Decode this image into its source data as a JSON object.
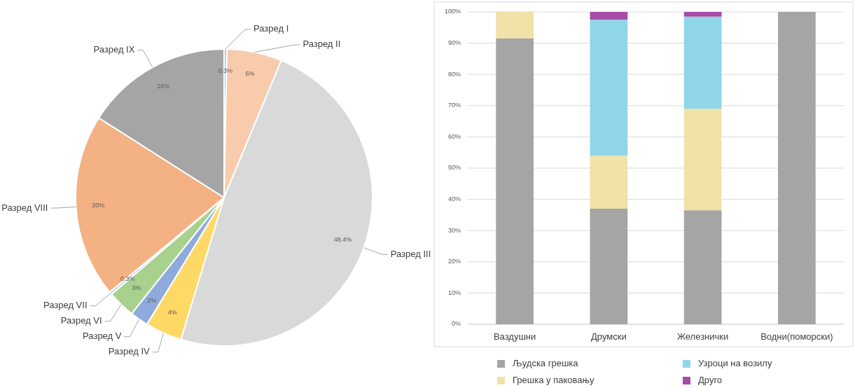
{
  "chart_data": [
    {
      "type": "pie",
      "categories": [
        "Разред I",
        "Разред II",
        "Разред III",
        "Разред IV",
        "Разред V",
        "Разред VI",
        "Разред VII",
        "Разред VIII",
        "Разред IX"
      ],
      "values": [
        0.3,
        6,
        48.4,
        4,
        2,
        3,
        0.3,
        20,
        16
      ],
      "value_labels": [
        "0.3%",
        "6%",
        "48.4%",
        "4%",
        "2%",
        "3%",
        "0.3%",
        "20%",
        "16%"
      ],
      "colors": [
        "#9dc3e6",
        "#f8cbad",
        "#d9d9d9",
        "#ffd966",
        "#8faadc",
        "#a9d18e",
        "#bdd7ee",
        "#f4b183",
        "#a5a5a5"
      ]
    },
    {
      "type": "bar",
      "stacked": true,
      "categories": [
        "Ваздушни",
        "Друмски",
        "Железнички",
        "Водни(поморски)"
      ],
      "series": [
        {
          "name": "Људска грешка",
          "color": "#a5a5a5",
          "values": [
            91.5,
            37,
            36.5,
            100
          ]
        },
        {
          "name": "Грешка у паковању",
          "color": "#f0e2a8",
          "values": [
            8.5,
            17,
            32.5,
            0
          ]
        },
        {
          "name": "Узроци на возилу",
          "color": "#8fd6e8",
          "values": [
            0,
            43.5,
            29.5,
            0
          ]
        },
        {
          "name": "Друго",
          "color": "#a64ca6",
          "values": [
            0,
            2.5,
            1.5,
            0
          ]
        }
      ],
      "ylim": [
        0,
        100
      ],
      "yticks": [
        {
          "value": 0,
          "label": "0%"
        },
        {
          "value": 10,
          "label": "10%"
        },
        {
          "value": 20,
          "label": "20%"
        },
        {
          "value": 30,
          "label": "30%"
        },
        {
          "value": 40,
          "label": "40%"
        },
        {
          "value": 50,
          "label": "50%"
        },
        {
          "value": 60,
          "label": "60%"
        },
        {
          "value": 70,
          "label": "70%"
        },
        {
          "value": 80,
          "label": "80%"
        },
        {
          "value": 90,
          "label": "90%"
        },
        {
          "value": 100,
          "label": "100%"
        }
      ],
      "grid": "y",
      "legend": "bottom"
    }
  ]
}
